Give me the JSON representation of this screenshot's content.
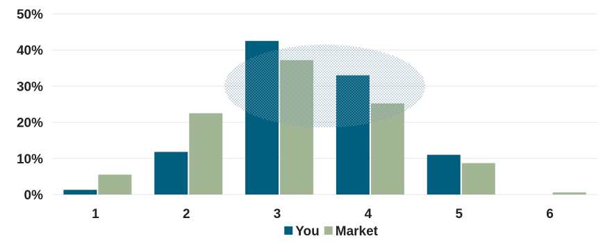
{
  "chart_data": {
    "type": "bar",
    "categories": [
      "1",
      "2",
      "3",
      "4",
      "5",
      "6"
    ],
    "series": [
      {
        "name": "You",
        "color": "#005f7f",
        "values": [
          1.3,
          11.8,
          42.5,
          33.0,
          11.0,
          0.0
        ]
      },
      {
        "name": "Market",
        "color": "#a2b595",
        "values": [
          5.5,
          22.5,
          37.2,
          25.2,
          8.7,
          0.6
        ]
      }
    ],
    "ylim": [
      0,
      50
    ],
    "yticks": [
      "0%",
      "10%",
      "20%",
      "30%",
      "40%",
      "50%"
    ],
    "grid": true,
    "gridColor": "#e6e6e6",
    "legend": "bottom",
    "highlight": {
      "shape": "ellipse",
      "around_categories": [
        "3",
        "4"
      ],
      "color": "#7f9fb5"
    }
  }
}
